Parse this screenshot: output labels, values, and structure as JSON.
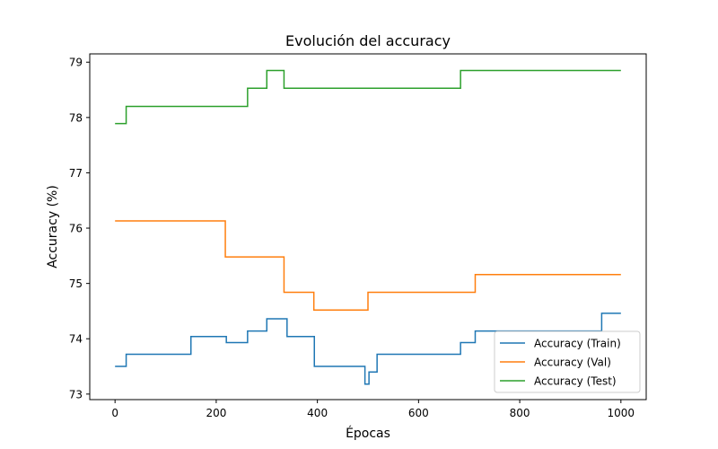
{
  "chart_data": {
    "type": "line",
    "title": "Evolución del accuracy",
    "xlabel": "Épocas",
    "ylabel": "Accuracy (%)",
    "xlim": [
      -50,
      1050
    ],
    "ylim": [
      72.9,
      79.15
    ],
    "xticks": [
      0,
      200,
      400,
      600,
      800,
      1000
    ],
    "yticks": [
      73,
      74,
      75,
      76,
      77,
      78,
      79
    ],
    "grid": false,
    "legend_position": "lower right",
    "series": [
      {
        "name": "Accuracy (Train)",
        "color": "#1f77b4",
        "points": [
          [
            0,
            73.5
          ],
          [
            22,
            73.5
          ],
          [
            22,
            73.72
          ],
          [
            150,
            73.72
          ],
          [
            150,
            74.04
          ],
          [
            220,
            74.04
          ],
          [
            220,
            73.93
          ],
          [
            262,
            73.93
          ],
          [
            262,
            74.14
          ],
          [
            300,
            74.14
          ],
          [
            300,
            74.36
          ],
          [
            340,
            74.36
          ],
          [
            340,
            74.04
          ],
          [
            394,
            74.04
          ],
          [
            394,
            73.5
          ],
          [
            494,
            73.5
          ],
          [
            494,
            73.18
          ],
          [
            502,
            73.18
          ],
          [
            502,
            73.4
          ],
          [
            518,
            73.4
          ],
          [
            518,
            73.72
          ],
          [
            683,
            73.72
          ],
          [
            683,
            73.93
          ],
          [
            712,
            73.93
          ],
          [
            712,
            74.14
          ],
          [
            962,
            74.14
          ],
          [
            962,
            74.46
          ],
          [
            1000,
            74.46
          ]
        ]
      },
      {
        "name": "Accuracy (Val)",
        "color": "#ff7f0e",
        "points": [
          [
            0,
            76.13
          ],
          [
            218,
            76.13
          ],
          [
            218,
            75.48
          ],
          [
            334,
            75.48
          ],
          [
            334,
            74.84
          ],
          [
            393,
            74.84
          ],
          [
            393,
            74.52
          ],
          [
            500,
            74.52
          ],
          [
            500,
            74.84
          ],
          [
            712,
            74.84
          ],
          [
            712,
            75.16
          ],
          [
            1000,
            75.16
          ]
        ]
      },
      {
        "name": "Accuracy (Test)",
        "color": "#2ca02c",
        "points": [
          [
            0,
            77.89
          ],
          [
            22,
            77.89
          ],
          [
            22,
            78.2
          ],
          [
            262,
            78.2
          ],
          [
            262,
            78.53
          ],
          [
            300,
            78.53
          ],
          [
            300,
            78.85
          ],
          [
            334,
            78.85
          ],
          [
            334,
            78.53
          ],
          [
            683,
            78.53
          ],
          [
            683,
            78.85
          ],
          [
            1000,
            78.85
          ]
        ]
      }
    ]
  }
}
